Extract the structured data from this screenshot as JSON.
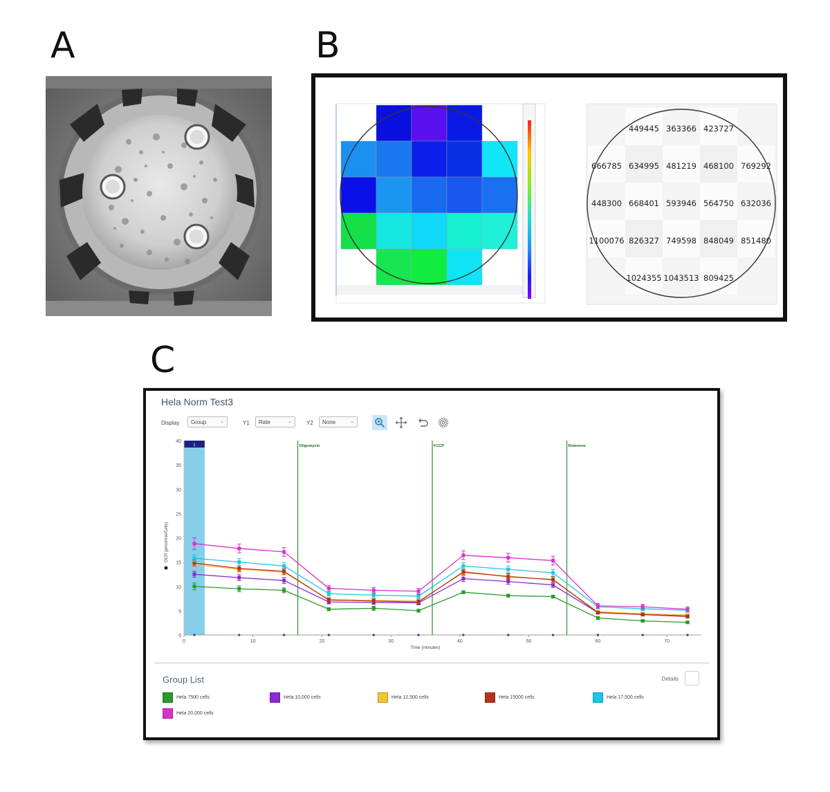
{
  "panels": {
    "a": "A",
    "b": "B",
    "c": "C"
  },
  "heatmap": {
    "rows": [
      [
        null,
        "#0a10e0",
        "#5a10ee",
        "#0a1ae6",
        null
      ],
      [
        "#1a90f0",
        "#1a78f0",
        "#0a20e8",
        "#0a30e6",
        "#10e6f8"
      ],
      [
        "#0c10e8",
        "#1a96f0",
        "#1a6af0",
        "#1a56f0",
        "#1a70f0"
      ],
      [
        "#14e048",
        "#14e8e0",
        "#10d8f8",
        "#16f0d0",
        "#20f0d8"
      ],
      [
        null,
        "#18e650",
        "#10ec40",
        "#10e4f4",
        null
      ]
    ]
  },
  "counts": {
    "rows": [
      [
        "",
        "449445",
        "363366",
        "423727",
        ""
      ],
      [
        "666785",
        "634995",
        "481219",
        "468100",
        "769292"
      ],
      [
        "448300",
        "668401",
        "593946",
        "564750",
        "632036"
      ],
      [
        "1100076",
        "826327",
        "749598",
        "848049",
        "851480"
      ],
      [
        "",
        "1024355",
        "1043513",
        "809425",
        ""
      ]
    ]
  },
  "panel_c": {
    "title": "Hela Norm Test3",
    "display_label": "Display",
    "display_value": "Group",
    "y1_label": "Y1",
    "y1_value": "Rate",
    "y2_label": "Y2",
    "y2_value": "None",
    "group_list_title": "Group List",
    "details_label": "Details",
    "colors": {
      "highlight": "#87ceeb",
      "marker_line": "#3a9a3a",
      "injection_bar": "#1a237e"
    }
  },
  "chart_data": {
    "type": "line",
    "xlabel": "Time (minutes)",
    "ylabel": "OCR (pmol/min/Cells)",
    "xlim": [
      0,
      75
    ],
    "ylim": [
      0,
      40
    ],
    "xticks": [
      0,
      10,
      20,
      30,
      40,
      50,
      60,
      70
    ],
    "yticks": [
      0,
      5,
      10,
      15,
      20,
      25,
      30,
      35,
      40
    ],
    "x": [
      1.5,
      8,
      14.5,
      21,
      27.5,
      34,
      40.5,
      47,
      53.5,
      60,
      66.5,
      73
    ],
    "highlight_label": "1",
    "highlight_range": [
      0,
      3
    ],
    "injections": [
      {
        "label": "Oligomycin",
        "x": 16.5
      },
      {
        "label": "FCCP",
        "x": 36
      },
      {
        "label": "Rotenone",
        "x": 55.5
      }
    ],
    "series": [
      {
        "name": "Hela 7500 cells",
        "color": "#2a9a2a",
        "values": [
          10.0,
          9.5,
          9.2,
          5.3,
          5.5,
          5.0,
          8.8,
          8.1,
          7.9,
          3.5,
          2.9,
          2.6
        ],
        "errors": [
          0.7,
          0.6,
          0.5,
          0.3,
          0.4,
          0.3,
          0.3,
          0.3,
          0.3,
          0.3,
          0.2,
          0.2
        ]
      },
      {
        "name": "Hela 10,000 cells",
        "color": "#8a2ad6",
        "values": [
          12.5,
          11.8,
          11.2,
          6.8,
          6.7,
          6.6,
          11.6,
          11.0,
          10.3,
          4.6,
          4.3,
          4.0
        ],
        "errors": [
          0.6,
          0.6,
          0.6,
          0.4,
          0.4,
          0.4,
          0.6,
          0.6,
          0.5,
          0.3,
          0.3,
          0.3
        ]
      },
      {
        "name": "Hela 12,500 cells",
        "color": "#f5c531",
        "values": [
          14.5,
          13.5,
          12.9,
          7.3,
          7.1,
          7.0,
          12.8,
          12.1,
          11.3,
          4.8,
          4.4,
          4.1
        ],
        "errors": [
          0.6,
          0.6,
          0.6,
          0.4,
          0.4,
          0.4,
          0.6,
          0.6,
          0.6,
          0.3,
          0.3,
          0.3
        ]
      },
      {
        "name": "Hela 15000 cells",
        "color": "#b83020",
        "values": [
          14.8,
          13.7,
          13.1,
          7.2,
          7.0,
          6.8,
          13.0,
          12.0,
          11.4,
          4.6,
          4.2,
          3.8
        ],
        "errors": [
          0.6,
          0.6,
          0.6,
          0.4,
          0.4,
          0.4,
          0.6,
          0.6,
          0.6,
          0.3,
          0.3,
          0.3
        ]
      },
      {
        "name": "Hela 17,500 cells",
        "color": "#18c8e8",
        "values": [
          15.8,
          15.0,
          14.2,
          8.5,
          8.2,
          8.0,
          14.2,
          13.5,
          12.8,
          5.8,
          5.4,
          5.1
        ],
        "errors": [
          0.7,
          0.7,
          0.7,
          0.5,
          0.5,
          0.5,
          0.7,
          0.7,
          0.7,
          0.4,
          0.4,
          0.4
        ]
      },
      {
        "name": "Hela 20,000 cells",
        "color": "#d633c8",
        "values": [
          18.8,
          17.8,
          17.1,
          9.6,
          9.2,
          9.0,
          16.4,
          15.9,
          15.3,
          6.0,
          5.8,
          5.3
        ],
        "errors": [
          1.2,
          0.9,
          0.9,
          0.6,
          0.6,
          0.6,
          0.9,
          0.9,
          0.9,
          0.5,
          0.5,
          0.5
        ]
      }
    ]
  }
}
